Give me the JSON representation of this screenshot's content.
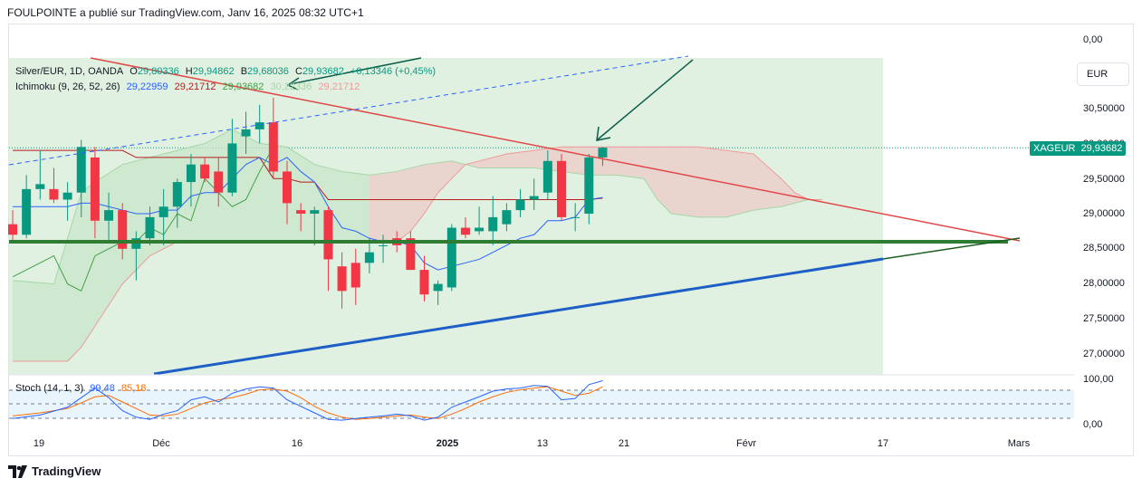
{
  "header": {
    "publisher_line": "FOULPOINTE a publié sur TradingView.com, Janv 16, 2025 08:32 UTC+1"
  },
  "legend": {
    "symbol": "Silver/EUR, 1D, OANDA",
    "o_label": "O",
    "o_value": "29,80336",
    "h_label": "H",
    "h_value": "29,94862",
    "l_label": "B",
    "l_value": "29,68036",
    "c_label": "C",
    "c_value": "29,93682",
    "change": "+0,13346 (+0,45%)",
    "ichimoku_name": "Ichimoku (9, 26, 52, 26)",
    "ichimoku_values": [
      "29,22959",
      "29,21712",
      "29,93682",
      "30,22336",
      "29,21712"
    ],
    "ichimoku_colors": [
      "#2962ff",
      "#b71c1c",
      "#43a047",
      "#a5d6a7",
      "#ef9a9a"
    ],
    "stoch_name": "Stoch (14, 1, 3)",
    "stoch_k": "99,48",
    "stoch_d": "85,18"
  },
  "price_axis": {
    "labels": [
      "0,00",
      "30,50000",
      "30,00000",
      "29,50000",
      "29,00000",
      "28,50000",
      "28,00000",
      "27,50000",
      "27,00000"
    ],
    "currency_button": "EUR",
    "stoch_labels": [
      "100,00",
      "0,00"
    ]
  },
  "price_tag": {
    "symbol": "XAGEUR",
    "value": "29,93682",
    "color": "#089981"
  },
  "time_axis": {
    "labels": [
      {
        "text": "19",
        "bold": false
      },
      {
        "text": "Déc",
        "bold": false
      },
      {
        "text": "16",
        "bold": false
      },
      {
        "text": "2025",
        "bold": true
      },
      {
        "text": "13",
        "bold": false
      },
      {
        "text": "21",
        "bold": false
      },
      {
        "text": "Févr",
        "bold": false
      },
      {
        "text": "17",
        "bold": false
      },
      {
        "text": "Mars",
        "bold": false
      }
    ]
  },
  "colors": {
    "up": "#089981",
    "down": "#f23645",
    "tenkan": "#2962ff",
    "kijun": "#b71c1c",
    "chikou": "#43a047",
    "cloud_up": "#a5d6a7",
    "cloud_down": "#ef9a9a"
  },
  "candles": [
    {
      "o": 28.85,
      "h": 29.05,
      "l": 28.6,
      "c": 28.7
    },
    {
      "o": 28.7,
      "h": 29.55,
      "l": 28.65,
      "c": 29.35
    },
    {
      "o": 29.35,
      "h": 29.9,
      "l": 29.2,
      "c": 29.42
    },
    {
      "o": 29.35,
      "h": 29.65,
      "l": 29.15,
      "c": 29.2
    },
    {
      "o": 29.2,
      "h": 29.45,
      "l": 28.9,
      "c": 29.3
    },
    {
      "o": 29.3,
      "h": 30.05,
      "l": 28.95,
      "c": 29.95
    },
    {
      "o": 29.8,
      "h": 29.95,
      "l": 28.65,
      "c": 28.9
    },
    {
      "o": 28.9,
      "h": 29.3,
      "l": 28.6,
      "c": 29.05
    },
    {
      "o": 29.05,
      "h": 29.15,
      "l": 28.35,
      "c": 28.5
    },
    {
      "o": 28.5,
      "h": 28.75,
      "l": 28.05,
      "c": 28.65
    },
    {
      "o": 28.65,
      "h": 29.1,
      "l": 28.55,
      "c": 28.95
    },
    {
      "o": 28.95,
      "h": 29.35,
      "l": 28.55,
      "c": 29.1
    },
    {
      "o": 29.1,
      "h": 29.5,
      "l": 28.8,
      "c": 29.45
    },
    {
      "o": 29.45,
      "h": 29.85,
      "l": 29.1,
      "c": 29.7
    },
    {
      "o": 29.7,
      "h": 29.8,
      "l": 29.45,
      "c": 29.5
    },
    {
      "o": 29.6,
      "h": 29.8,
      "l": 29.1,
      "c": 29.3
    },
    {
      "o": 29.3,
      "h": 30.35,
      "l": 29.25,
      "c": 30.0
    },
    {
      "o": 30.1,
      "h": 30.45,
      "l": 29.85,
      "c": 30.2
    },
    {
      "o": 30.2,
      "h": 30.55,
      "l": 30.0,
      "c": 30.3
    },
    {
      "o": 30.3,
      "h": 30.65,
      "l": 29.5,
      "c": 29.6
    },
    {
      "o": 29.6,
      "h": 29.75,
      "l": 28.85,
      "c": 29.15
    },
    {
      "o": 29.05,
      "h": 29.15,
      "l": 28.75,
      "c": 29.0
    },
    {
      "o": 29.0,
      "h": 29.1,
      "l": 28.55,
      "c": 29.05
    },
    {
      "o": 29.05,
      "h": 29.1,
      "l": 27.9,
      "c": 28.35
    },
    {
      "o": 28.25,
      "h": 28.45,
      "l": 27.65,
      "c": 27.9
    },
    {
      "o": 28.3,
      "h": 28.5,
      "l": 27.7,
      "c": 27.95
    },
    {
      "o": 28.3,
      "h": 28.65,
      "l": 28.15,
      "c": 28.45
    },
    {
      "o": 28.55,
      "h": 28.7,
      "l": 28.3,
      "c": 28.55
    },
    {
      "o": 28.65,
      "h": 28.75,
      "l": 28.45,
      "c": 28.55
    },
    {
      "o": 28.65,
      "h": 28.75,
      "l": 28.2,
      "c": 28.2
    },
    {
      "o": 28.2,
      "h": 28.4,
      "l": 27.75,
      "c": 27.85
    },
    {
      "o": 27.9,
      "h": 28.05,
      "l": 27.7,
      "c": 28.0
    },
    {
      "o": 27.95,
      "h": 28.85,
      "l": 27.9,
      "c": 28.8
    },
    {
      "o": 28.8,
      "h": 28.95,
      "l": 28.65,
      "c": 28.7
    },
    {
      "o": 28.75,
      "h": 29.1,
      "l": 28.7,
      "c": 28.8
    },
    {
      "o": 28.75,
      "h": 29.25,
      "l": 28.55,
      "c": 28.95
    },
    {
      "o": 28.85,
      "h": 29.15,
      "l": 28.75,
      "c": 29.05
    },
    {
      "o": 29.05,
      "h": 29.35,
      "l": 28.95,
      "c": 29.2
    },
    {
      "o": 29.2,
      "h": 29.5,
      "l": 29.05,
      "c": 29.25
    },
    {
      "o": 29.3,
      "h": 29.9,
      "l": 29.2,
      "c": 29.75
    },
    {
      "o": 29.75,
      "h": 29.85,
      "l": 28.9,
      "c": 28.95
    },
    {
      "o": 28.95,
      "h": 29.15,
      "l": 28.75,
      "c": 28.95
    },
    {
      "o": 29.0,
      "h": 29.85,
      "l": 28.85,
      "c": 29.8
    },
    {
      "o": 29.8,
      "h": 29.95,
      "l": 29.68,
      "c": 29.94
    }
  ],
  "ichimoku": {
    "tenkan": [
      [
        0,
        29.1
      ],
      [
        1,
        29.1
      ],
      [
        2,
        29.1
      ],
      [
        3,
        29.1
      ],
      [
        4,
        29.1
      ],
      [
        5,
        29.15
      ],
      [
        6,
        29.15
      ],
      [
        7,
        29.1
      ],
      [
        8,
        29.05
      ],
      [
        9,
        29.0
      ],
      [
        10,
        29.0
      ],
      [
        11,
        29.05
      ],
      [
        12,
        29.05
      ],
      [
        13,
        29.25
      ],
      [
        14,
        29.3
      ],
      [
        15,
        29.3
      ],
      [
        16,
        29.5
      ],
      [
        17,
        29.7
      ],
      [
        18,
        29.8
      ],
      [
        19,
        29.7
      ],
      [
        20,
        29.8
      ],
      [
        21,
        29.6
      ],
      [
        22,
        29.45
      ],
      [
        23,
        29.1
      ],
      [
        24,
        28.8
      ],
      [
        25,
        28.75
      ],
      [
        26,
        28.65
      ],
      [
        27,
        28.6
      ],
      [
        28,
        28.6
      ],
      [
        29,
        28.55
      ],
      [
        30,
        28.3
      ],
      [
        31,
        28.2
      ],
      [
        32,
        28.25
      ],
      [
        33,
        28.3
      ],
      [
        34,
        28.35
      ],
      [
        35,
        28.45
      ],
      [
        36,
        28.55
      ],
      [
        37,
        28.65
      ],
      [
        38,
        28.7
      ],
      [
        39,
        28.9
      ],
      [
        40,
        28.9
      ],
      [
        41,
        28.95
      ],
      [
        42,
        29.2
      ],
      [
        43,
        29.23
      ]
    ],
    "kijun": [
      [
        0,
        29.9
      ],
      [
        8,
        29.9
      ],
      [
        9,
        29.8
      ],
      [
        18,
        29.8
      ],
      [
        19,
        29.5
      ],
      [
        20,
        29.5
      ],
      [
        21,
        29.45
      ],
      [
        22,
        29.45
      ],
      [
        23,
        29.2
      ],
      [
        42,
        29.2
      ],
      [
        43,
        29.22
      ]
    ],
    "chikou": [
      [
        0,
        28.1
      ],
      [
        2,
        28.3
      ],
      [
        3,
        28.4
      ],
      [
        4,
        28.0
      ],
      [
        5,
        27.9
      ],
      [
        6,
        28.4
      ],
      [
        7,
        28.5
      ],
      [
        8,
        28.6
      ],
      [
        9,
        28.6
      ],
      [
        10,
        28.8
      ],
      [
        11,
        28.7
      ],
      [
        12,
        29.0
      ],
      [
        13,
        28.9
      ],
      [
        14,
        29.5
      ],
      [
        15,
        29.3
      ],
      [
        16,
        29.1
      ],
      [
        17,
        29.2
      ],
      [
        18,
        29.6
      ],
      [
        19,
        29.95
      ]
    ],
    "span_a": [
      [
        0,
        28.05
      ],
      [
        3,
        28.0
      ],
      [
        5,
        29.3
      ],
      [
        6,
        29.45
      ],
      [
        8,
        29.7
      ],
      [
        10,
        29.8
      ],
      [
        12,
        29.9
      ],
      [
        14,
        30.0
      ],
      [
        16,
        30.2
      ],
      [
        18,
        30.0
      ],
      [
        20,
        29.95
      ],
      [
        22,
        29.7
      ],
      [
        24,
        29.6
      ],
      [
        26,
        29.55
      ],
      [
        28,
        29.6
      ],
      [
        30,
        29.7
      ],
      [
        32,
        29.75
      ],
      [
        34,
        29.65
      ],
      [
        36,
        29.65
      ],
      [
        38,
        29.65
      ],
      [
        40,
        29.6
      ],
      [
        42,
        29.55
      ],
      [
        44,
        29.55
      ],
      [
        46,
        29.5
      ],
      [
        47,
        29.2
      ],
      [
        48,
        29.0
      ],
      [
        50,
        28.95
      ],
      [
        52,
        28.95
      ],
      [
        54,
        29.05
      ],
      [
        56,
        29.1
      ],
      [
        58,
        29.2
      ],
      [
        59,
        29.2
      ]
    ],
    "span_b": [
      [
        0,
        26.9
      ],
      [
        4,
        26.9
      ],
      [
        5,
        27.1
      ],
      [
        6,
        27.4
      ],
      [
        7,
        27.7
      ],
      [
        8,
        28.0
      ],
      [
        10,
        28.4
      ],
      [
        12,
        28.6
      ],
      [
        14,
        28.6
      ],
      [
        16,
        28.6
      ],
      [
        18,
        28.6
      ],
      [
        20,
        28.6
      ],
      [
        22,
        28.6
      ],
      [
        24,
        28.6
      ],
      [
        26,
        28.6
      ],
      [
        28,
        28.6
      ],
      [
        29,
        28.75
      ],
      [
        30,
        29.0
      ],
      [
        31,
        29.3
      ],
      [
        32,
        29.5
      ],
      [
        33,
        29.7
      ],
      [
        34,
        29.75
      ],
      [
        36,
        29.85
      ],
      [
        38,
        29.9
      ],
      [
        40,
        29.95
      ],
      [
        42,
        29.95
      ],
      [
        44,
        29.95
      ],
      [
        46,
        29.95
      ],
      [
        48,
        29.95
      ],
      [
        50,
        29.95
      ],
      [
        52,
        29.9
      ],
      [
        54,
        29.85
      ],
      [
        56,
        29.5
      ],
      [
        57,
        29.3
      ],
      [
        58,
        29.2
      ],
      [
        59,
        29.2
      ]
    ]
  },
  "stoch": {
    "k": [
      [
        0,
        12
      ],
      [
        2,
        20
      ],
      [
        4,
        38
      ],
      [
        5,
        60
      ],
      [
        6,
        82
      ],
      [
        7,
        60
      ],
      [
        8,
        30
      ],
      [
        9,
        15
      ],
      [
        10,
        10
      ],
      [
        11,
        22
      ],
      [
        12,
        30
      ],
      [
        13,
        55
      ],
      [
        14,
        62
      ],
      [
        15,
        50
      ],
      [
        16,
        70
      ],
      [
        17,
        80
      ],
      [
        18,
        85
      ],
      [
        19,
        82
      ],
      [
        20,
        55
      ],
      [
        21,
        40
      ],
      [
        22,
        25
      ],
      [
        23,
        10
      ],
      [
        24,
        8
      ],
      [
        25,
        12
      ],
      [
        26,
        15
      ],
      [
        27,
        18
      ],
      [
        28,
        22
      ],
      [
        29,
        18
      ],
      [
        30,
        8
      ],
      [
        31,
        15
      ],
      [
        32,
        38
      ],
      [
        33,
        50
      ],
      [
        34,
        62
      ],
      [
        35,
        75
      ],
      [
        36,
        80
      ],
      [
        37,
        82
      ],
      [
        38,
        88
      ],
      [
        39,
        86
      ],
      [
        40,
        55
      ],
      [
        41,
        58
      ],
      [
        42,
        90
      ],
      [
        43,
        99
      ]
    ],
    "d": [
      [
        0,
        18
      ],
      [
        2,
        25
      ],
      [
        4,
        35
      ],
      [
        5,
        48
      ],
      [
        6,
        62
      ],
      [
        7,
        65
      ],
      [
        8,
        50
      ],
      [
        9,
        35
      ],
      [
        10,
        20
      ],
      [
        11,
        18
      ],
      [
        12,
        22
      ],
      [
        13,
        35
      ],
      [
        14,
        48
      ],
      [
        15,
        55
      ],
      [
        16,
        60
      ],
      [
        17,
        68
      ],
      [
        18,
        78
      ],
      [
        19,
        80
      ],
      [
        20,
        75
      ],
      [
        21,
        60
      ],
      [
        22,
        40
      ],
      [
        23,
        25
      ],
      [
        24,
        15
      ],
      [
        25,
        10
      ],
      [
        26,
        12
      ],
      [
        27,
        15
      ],
      [
        28,
        18
      ],
      [
        29,
        20
      ],
      [
        30,
        15
      ],
      [
        31,
        12
      ],
      [
        32,
        22
      ],
      [
        33,
        35
      ],
      [
        34,
        50
      ],
      [
        35,
        62
      ],
      [
        36,
        72
      ],
      [
        37,
        78
      ],
      [
        38,
        82
      ],
      [
        39,
        85
      ],
      [
        40,
        75
      ],
      [
        41,
        65
      ],
      [
        42,
        70
      ],
      [
        43,
        85
      ]
    ]
  }
}
